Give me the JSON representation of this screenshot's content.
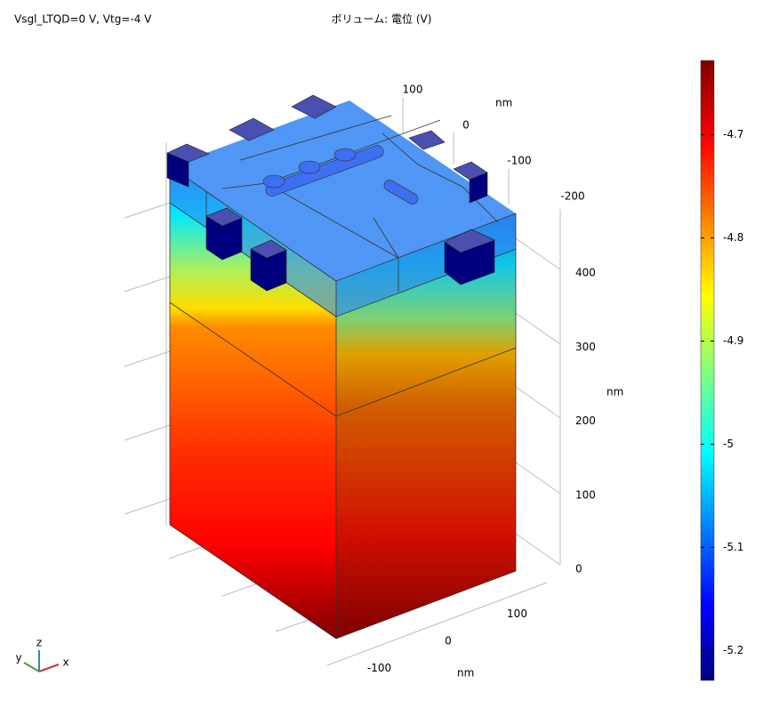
{
  "title_left": "Vsgl_LTQD=0 V, Vtg=-4 V",
  "title_center": "ボリューム: 電位 (V)",
  "colorbar": {
    "range": [
      -5.229,
      -4.628
    ],
    "ticks": [
      -5.2,
      -5.1,
      -5,
      -4.9,
      -4.8,
      -4.7
    ]
  },
  "axes": {
    "x": {
      "label": "nm",
      "ticks": [
        -100,
        0,
        100
      ]
    },
    "y": {
      "label": "nm",
      "ticks": [
        -200,
        -100,
        0,
        100
      ]
    },
    "z": {
      "label": "nm",
      "ticks": [
        0,
        100,
        200,
        300,
        400
      ]
    }
  },
  "triad": {
    "x": "x",
    "y": "y",
    "z": "z"
  }
}
